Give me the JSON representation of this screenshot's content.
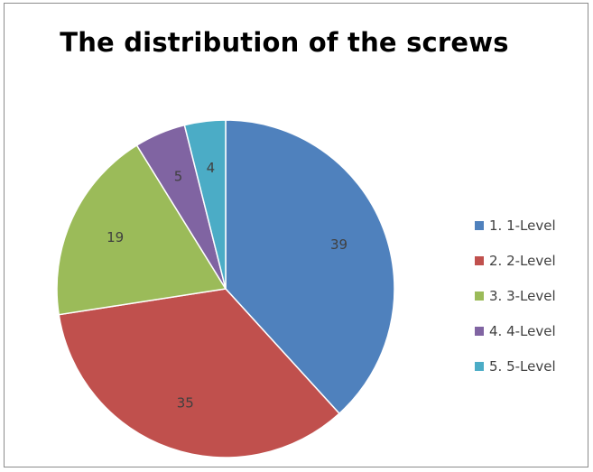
{
  "chart_data": {
    "type": "pie",
    "title": "The distribution of the screws",
    "categories": [
      "1. 1-Level",
      "2. 2-Level",
      "3. 3-Level",
      "4. 4-Level",
      "5. 5-Level"
    ],
    "values": [
      39,
      35,
      19,
      5,
      4
    ],
    "colors": [
      "#4F81BD",
      "#C0504D",
      "#9BBB59",
      "#8064A2",
      "#4BACC6"
    ],
    "legend_position": "right",
    "data_labels": [
      "39",
      "35",
      "19",
      "5",
      "4"
    ]
  }
}
